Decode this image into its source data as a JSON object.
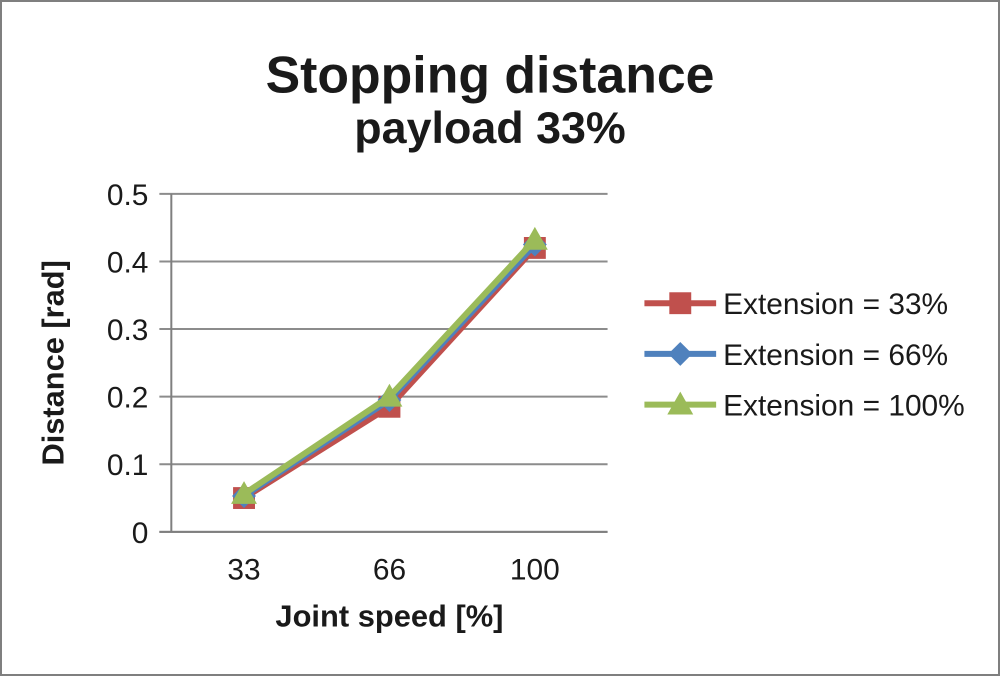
{
  "window": {
    "background": "#FFFFFF",
    "border_color": "#7F7F7F"
  },
  "chart_data": {
    "type": "line",
    "title": "Stopping distance",
    "subtitle": "payload 33%",
    "xlabel": "Joint speed [%]",
    "ylabel": "Distance [rad]",
    "categories": [
      "33",
      "66",
      "100"
    ],
    "series": [
      {
        "name": "Extension = 33%",
        "marker": "square",
        "color": "#C0504D",
        "values": [
          0.05,
          0.185,
          0.42
        ]
      },
      {
        "name": "Extension = 66%",
        "marker": "diamond",
        "color": "#4F81BD",
        "values": [
          0.053,
          0.195,
          0.425
        ]
      },
      {
        "name": "Extension = 100%",
        "marker": "triangle",
        "color": "#9BBB59",
        "values": [
          0.056,
          0.2,
          0.432
        ]
      }
    ],
    "ylim": [
      0,
      0.5
    ],
    "y_ticks": [
      {
        "value": 0,
        "label": "0"
      },
      {
        "value": 0.1,
        "label": "0.1"
      },
      {
        "value": 0.2,
        "label": "0.2"
      },
      {
        "value": 0.3,
        "label": "0.3"
      },
      {
        "value": 0.4,
        "label": "0.4"
      },
      {
        "value": 0.5,
        "label": "0.5"
      }
    ],
    "grid": "horizontal",
    "legend_position": "right",
    "colors": {
      "gridline": "#8C8C8C",
      "axis": "#7F7F7F",
      "text": "#1A1A1A"
    }
  }
}
